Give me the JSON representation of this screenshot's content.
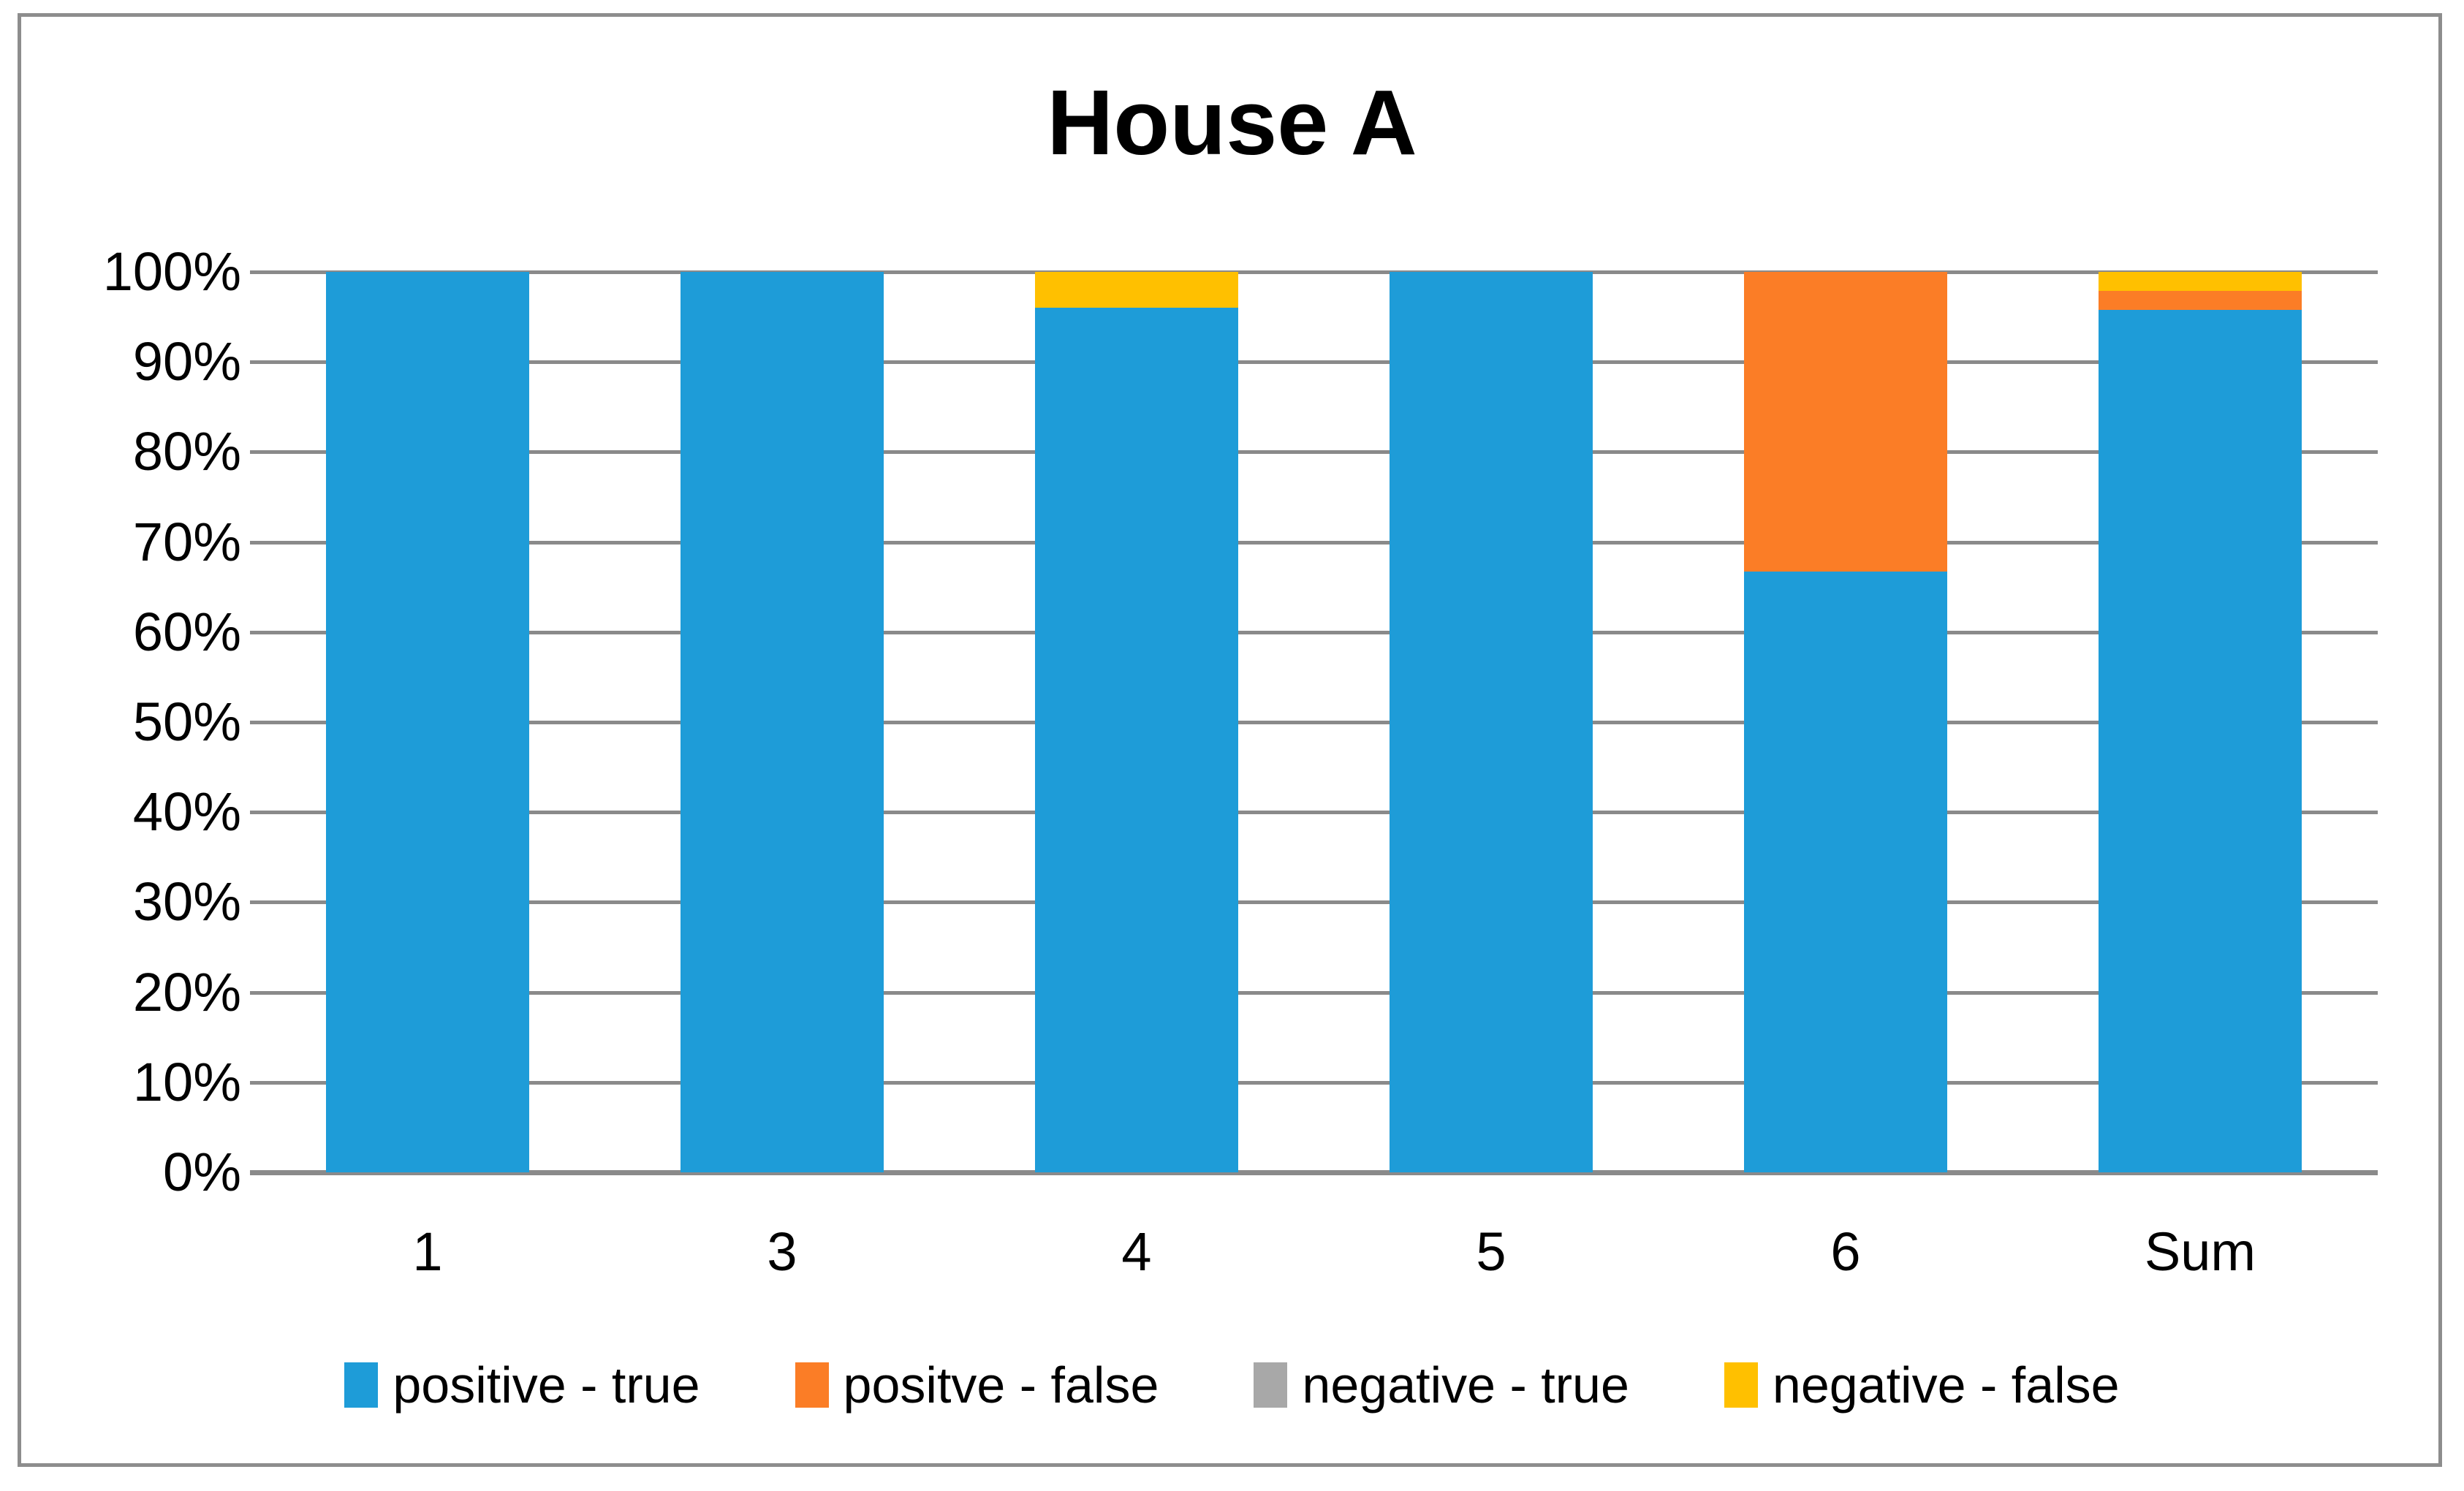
{
  "title": "House A",
  "chart_data": {
    "type": "bar",
    "subtype": "stacked-100-percent-column",
    "title": "House A",
    "categories": [
      "1",
      "3",
      "4",
      "5",
      "6",
      "Sum"
    ],
    "series": [
      {
        "name": "positive - true",
        "color": "#1e9cd8",
        "values": [
          100,
          100,
          96,
          100,
          66.7,
          95.8
        ]
      },
      {
        "name": "positve - false",
        "color": "#fb7d26",
        "values": [
          0,
          0,
          0,
          0,
          33.3,
          2.1
        ]
      },
      {
        "name": "negative - true",
        "color": "#a8a8a8",
        "values": [
          0,
          0,
          0,
          0,
          0,
          0
        ]
      },
      {
        "name": "negative - false",
        "color": "#ffc000",
        "values": [
          0,
          0,
          4,
          0,
          0,
          2.1
        ]
      }
    ],
    "y_ticks": [
      "100%",
      "90%",
      "80%",
      "70%",
      "60%",
      "50%",
      "40%",
      "30%",
      "20%",
      "10%",
      "0%"
    ],
    "ylim": [
      0,
      100
    ],
    "xlabel": "",
    "ylabel": "",
    "grid": true,
    "gridline_color": "#8a8a8a",
    "legend_position": "bottom",
    "plot_background": "#ffffff",
    "border_color": "#8d8d8d"
  }
}
